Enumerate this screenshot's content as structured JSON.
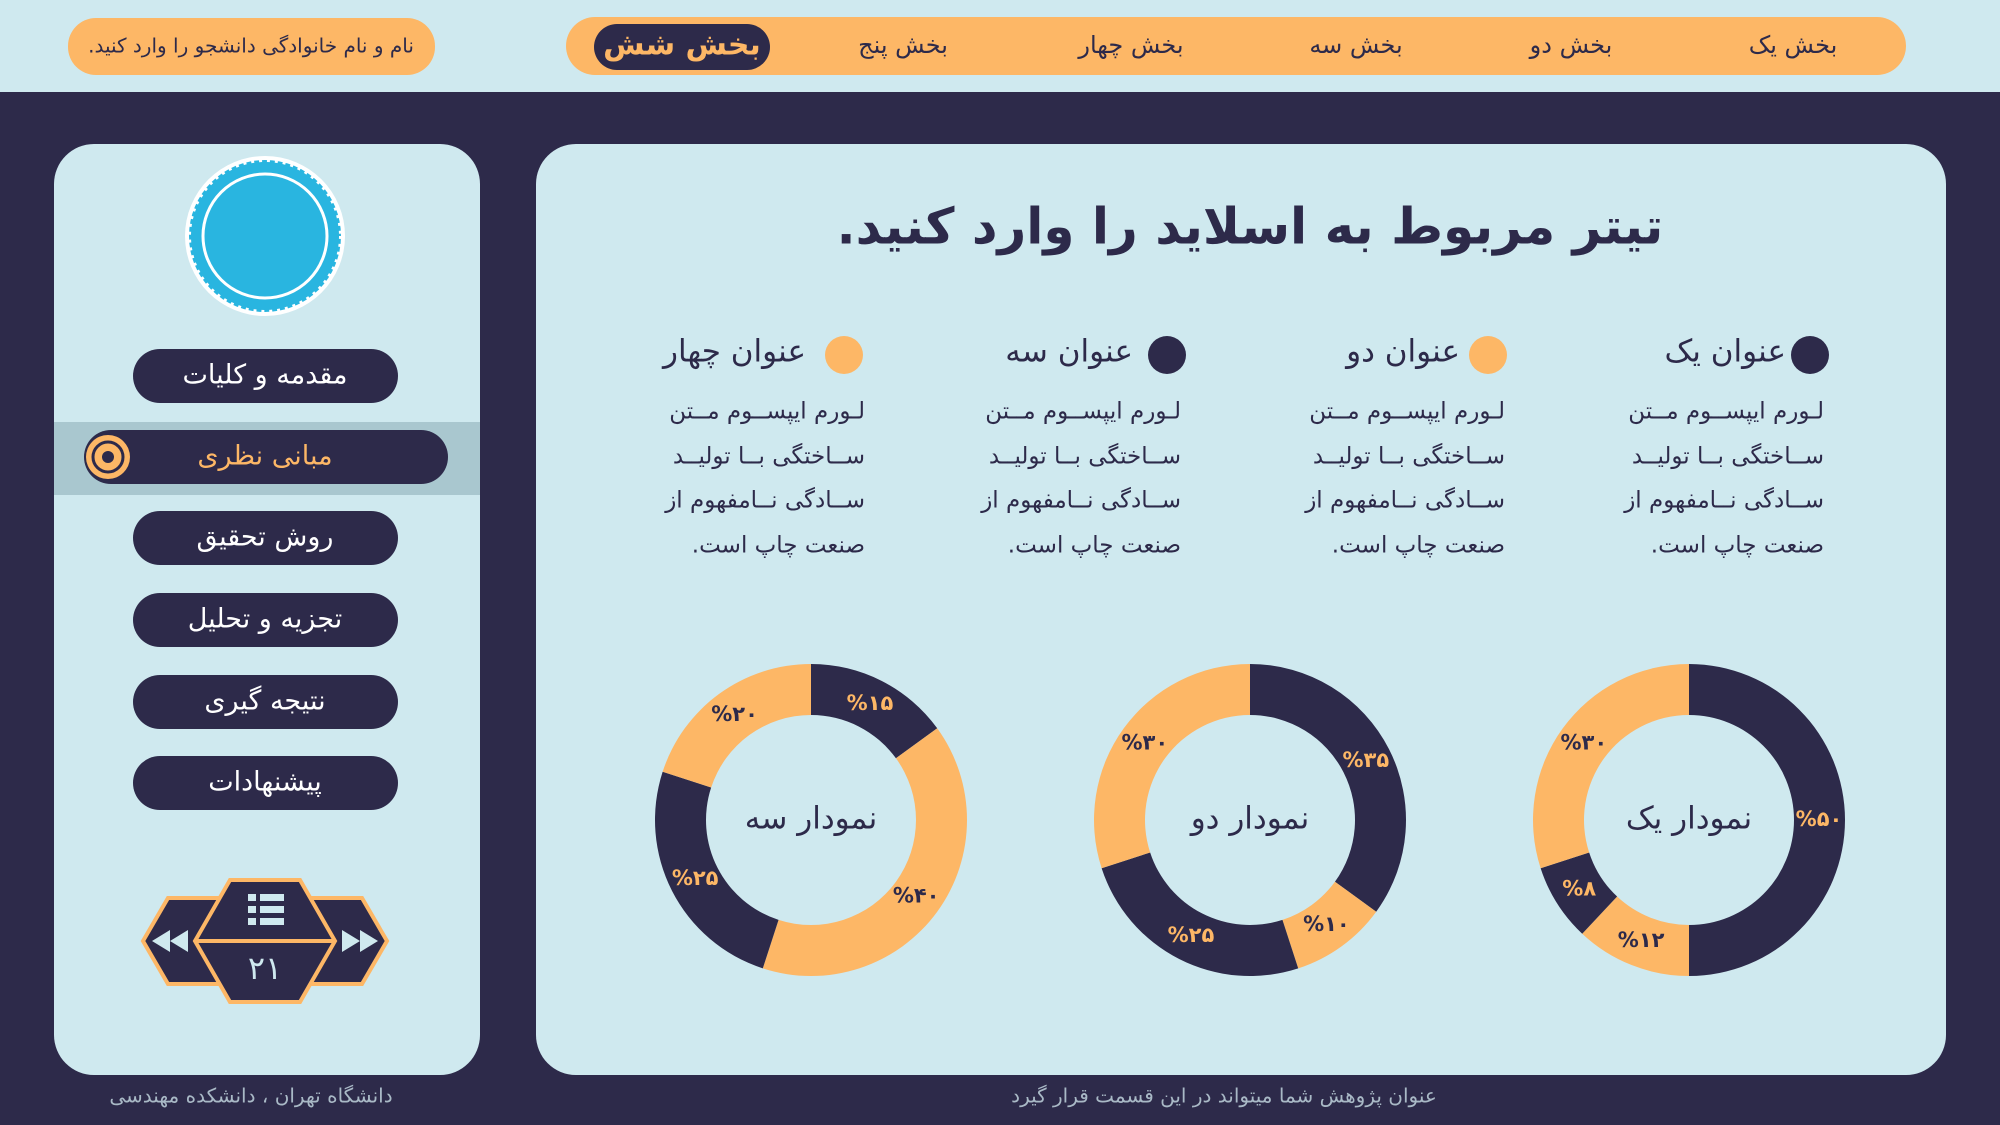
{
  "header": {
    "student": "نام و نام خانوادگی دانشجو را وارد کنید.",
    "nav": [
      "بخش یک",
      "بخش دو",
      "بخش سه",
      "بخش چهار",
      "بخش پنج",
      "بخش شش"
    ]
  },
  "sidebar": {
    "menu": [
      "مقدمه و کلیات",
      "مبانی نظری",
      "روش تحقیق",
      "تجزیه و تحلیل",
      "نتیجه گیری",
      "پیشنهادات"
    ],
    "page_number": "۲۱"
  },
  "slide": {
    "title": "تیتر مربوط به اسلاید را وارد کنید.",
    "columns": [
      {
        "heading": "عنوان یک",
        "text": [
          "لـورم ایپســوم مــتن",
          "ســاختگی بــا تولیــد",
          "ســادگی نــامفهوم از",
          "صنعت  چاپ است."
        ]
      },
      {
        "heading": "عنوان دو",
        "text": [
          "لـورم ایپســوم مــتن",
          "ســاختگی بــا تولیــد",
          "ســادگی نــامفهوم از",
          "صنعت  چاپ است."
        ]
      },
      {
        "heading": "عنوان سه",
        "text": [
          "لـورم ایپســوم مــتن",
          "ســاختگی بــا تولیــد",
          "ســادگی نــامفهوم از",
          "صنعت  چاپ است."
        ]
      },
      {
        "heading": "عنوان چهار",
        "text": [
          "لـورم ایپســوم مــتن",
          "ســاختگی بــا تولیــد",
          "ســادگی نــامفهوم از",
          "صنعت  چاپ است."
        ]
      }
    ]
  },
  "chart_data": [
    {
      "type": "pie",
      "title": "نمودار یک",
      "values": [
        50,
        12,
        8,
        30
      ],
      "value_labels": [
        "%۵۰",
        "%۱۲",
        "%۸",
        "%۳۰"
      ],
      "colors": [
        "#2d2a4a",
        "#fdb766",
        "#2d2a4a",
        "#fdb766"
      ]
    },
    {
      "type": "pie",
      "title": "نمودار دو",
      "values": [
        35,
        10,
        25,
        30
      ],
      "value_labels": [
        "%۳۵",
        "%۱۰",
        "%۲۵",
        "%۳۰"
      ],
      "colors": [
        "#2d2a4a",
        "#fdb766",
        "#2d2a4a",
        "#fdb766"
      ]
    },
    {
      "type": "pie",
      "title": "نمودار سه",
      "values": [
        15,
        40,
        25,
        20
      ],
      "value_labels": [
        "%۱۵",
        "%۴۰",
        "%۲۵",
        "%۲۰"
      ],
      "colors": [
        "#2d2a4a",
        "#fdb766",
        "#2d2a4a",
        "#fdb766"
      ]
    }
  ],
  "footer": {
    "left": "دانشگاه تهران ، دانشکده مهندسی",
    "center": "عنوان پژوهش شما میتواند در این قسمت قرار گیرد"
  }
}
